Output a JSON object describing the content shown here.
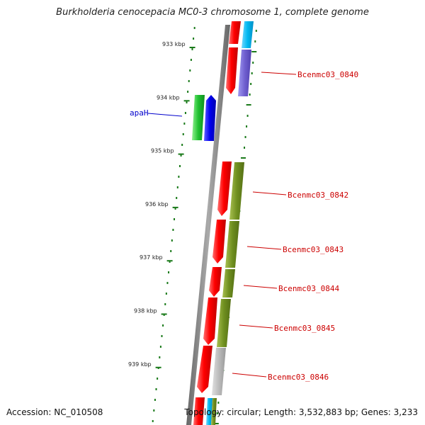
{
  "title": "Burkholderia cenocepacia MC0-3 chromosome 1, complete genome",
  "accession_text": "Accession: NC_010508",
  "topology_text": "Topology: circular; Length: 3,532,883 bp; Genes: 3,233",
  "ticks": [
    {
      "label": "933 kbp",
      "kbp": 933
    },
    {
      "label": "934 kbp",
      "kbp": 934
    },
    {
      "label": "935 kbp",
      "kbp": 935
    },
    {
      "label": "936 kbp",
      "kbp": 936
    },
    {
      "label": "937 kbp",
      "kbp": 937
    },
    {
      "label": "938 kbp",
      "kbp": 938
    },
    {
      "label": "939 kbp",
      "kbp": 939
    }
  ],
  "genes": [
    {
      "label": "apaH",
      "label_color": "#0000cc"
    },
    {
      "label": "Bcenmc03_0840",
      "label_color": "#cc0000"
    },
    {
      "label": "Bcenmc03_0842",
      "label_color": "#cc0000"
    },
    {
      "label": "Bcenmc03_0843",
      "label_color": "#cc0000"
    },
    {
      "label": "Bcenmc03_0844",
      "label_color": "#cc0000"
    },
    {
      "label": "Bcenmc03_0845",
      "label_color": "#cc0000"
    },
    {
      "label": "Bcenmc03_0846",
      "label_color": "#cc0000"
    }
  ],
  "colors": {
    "cds_red": "#ff0000",
    "cog_cyan": "#00b8f0",
    "cog_purple": "#7060d0",
    "cog_olive": "#6f8f1f",
    "cog_gray": "#b8b8b8",
    "cog_green": "#20c030",
    "cog_blue": "#0000ee",
    "backbone": "#888888",
    "tick_green": "#1a7a1a"
  }
}
